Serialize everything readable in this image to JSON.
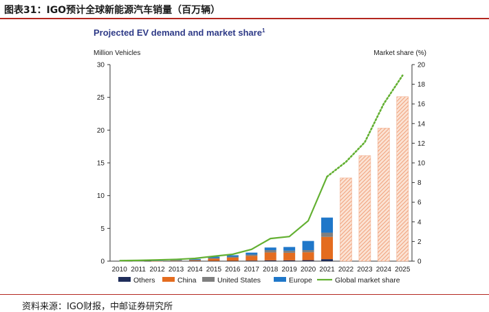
{
  "header": {
    "title": "图表31：IGO预计全球新能源汽车销量（百万辆）"
  },
  "footer": {
    "source": "资料来源：IGO财报，中邮证券研究所"
  },
  "chart_data": {
    "type": "bar",
    "title": "Projected EV demand and market share",
    "title_superscript": "1",
    "ylabel": "Million Vehicles",
    "y2label": "Market share (%)",
    "ylim": [
      0,
      30
    ],
    "y2lim": [
      0,
      20
    ],
    "yticks": [
      0,
      5,
      10,
      15,
      20,
      25,
      30
    ],
    "y2ticks": [
      0,
      2,
      4,
      6,
      8,
      10,
      12,
      14,
      16,
      18,
      20
    ],
    "categories": [
      "2010",
      "2011",
      "2012",
      "2013",
      "2014",
      "2015",
      "2016",
      "2017",
      "2018",
      "2019",
      "2020",
      "2021",
      "2022",
      "2023",
      "2024",
      "2025"
    ],
    "series": [
      {
        "name": "Others",
        "kind": "bar",
        "color": "#1f2d5a",
        "values": [
          0,
          0,
          0,
          0.02,
          0.03,
          0.04,
          0.05,
          0.08,
          0.12,
          0.12,
          0.15,
          0.3,
          null,
          null,
          null,
          null
        ]
      },
      {
        "name": "China",
        "kind": "bar",
        "color": "#e46c1f",
        "values": [
          0,
          0,
          0.01,
          0.02,
          0.08,
          0.33,
          0.48,
          0.72,
          1.2,
          1.15,
          1.2,
          3.4,
          null,
          null,
          null,
          null
        ]
      },
      {
        "name": "United States",
        "kind": "bar",
        "color": "#7f7f7f",
        "values": [
          0,
          0.01,
          0.05,
          0.1,
          0.12,
          0.11,
          0.15,
          0.2,
          0.36,
          0.33,
          0.33,
          0.65,
          null,
          null,
          null,
          null
        ]
      },
      {
        "name": "Europe",
        "kind": "bar",
        "color": "#1f77c9",
        "values": [
          0,
          0,
          0.02,
          0.06,
          0.1,
          0.2,
          0.22,
          0.3,
          0.4,
          0.56,
          1.4,
          2.3,
          null,
          null,
          null,
          null
        ]
      },
      {
        "name": "Projected total",
        "kind": "bar-hatched",
        "color": "#f5b697",
        "values": [
          null,
          null,
          null,
          null,
          null,
          null,
          null,
          null,
          null,
          null,
          null,
          null,
          12.7,
          16.1,
          20.3,
          25.1
        ]
      },
      {
        "name": "Global market share",
        "kind": "line",
        "axis": "right",
        "color": "#63b032",
        "values": [
          0.05,
          0.08,
          0.12,
          0.18,
          0.28,
          0.5,
          0.7,
          1.2,
          2.3,
          2.5,
          4.1,
          8.6,
          10.1,
          12.1,
          16.0,
          18.9
        ],
        "dotted_from_index": 11
      }
    ],
    "legend": {
      "placement": "bottom",
      "entries": [
        "Others",
        "China",
        "United States",
        "Europe",
        "Global market share"
      ]
    },
    "grid": false
  }
}
